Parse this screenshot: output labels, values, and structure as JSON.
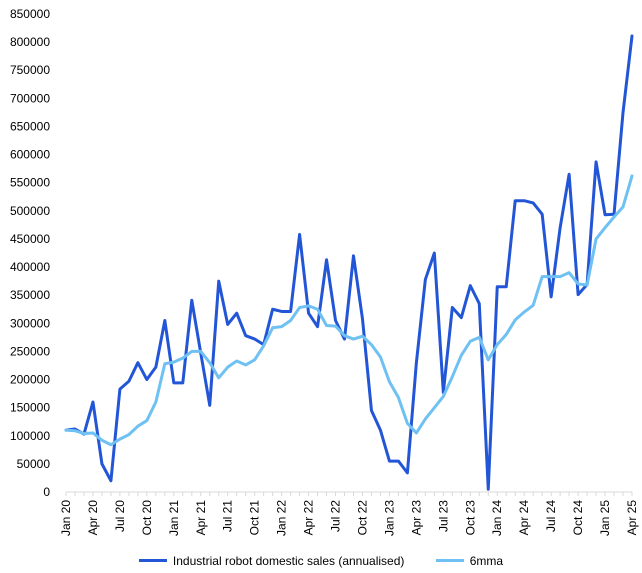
{
  "chart_data": {
    "type": "line",
    "title": "",
    "xlabel": "",
    "ylabel": "",
    "ylim": [
      0,
      850000
    ],
    "y_ticks": [
      0,
      50000,
      100000,
      150000,
      200000,
      250000,
      300000,
      350000,
      400000,
      450000,
      500000,
      550000,
      600000,
      650000,
      700000,
      750000,
      800000,
      850000
    ],
    "x": [
      "Jan 20",
      "Feb 20",
      "Mar 20",
      "Apr 20",
      "May 20",
      "Jun 20",
      "Jul 20",
      "Aug 20",
      "Sep 20",
      "Oct 20",
      "Nov 20",
      "Dec 20",
      "Jan 21",
      "Feb 21",
      "Mar 21",
      "Apr 21",
      "May 21",
      "Jun 21",
      "Jul 21",
      "Aug 21",
      "Sep 21",
      "Oct 21",
      "Nov 21",
      "Dec 21",
      "Jan 22",
      "Feb 22",
      "Mar 22",
      "Apr 22",
      "May 22",
      "Jun 22",
      "Jul 22",
      "Aug 22",
      "Sep 22",
      "Oct 22",
      "Nov 22",
      "Dec 22",
      "Jan 23",
      "Feb 23",
      "Mar 23",
      "Apr 23",
      "May 23",
      "Jun 23",
      "Jul 23",
      "Aug 23",
      "Sep 23",
      "Oct 23",
      "Nov 23",
      "Dec 23",
      "Jan 24",
      "Feb 24",
      "Mar 24",
      "Apr 24",
      "May 24",
      "Jun 24",
      "Jul 24",
      "Aug 24",
      "Sep 24",
      "Oct 24",
      "Nov 24",
      "Dec 24",
      "Jan 25",
      "Feb 25",
      "Mar 25",
      "Apr 25"
    ],
    "x_tick_labels": [
      "Jan 20",
      "Apr 20",
      "Jul 20",
      "Oct 20",
      "Jan 21",
      "Apr 21",
      "Jul 21",
      "Oct 21",
      "Jan 22",
      "Apr 22",
      "Jul 22",
      "Oct 22",
      "Jan 23",
      "Apr 23",
      "Jul 23",
      "Oct 23",
      "Jan 24",
      "Apr 24",
      "Jul 24",
      "Oct 24",
      "Jan 25",
      "Apr 25"
    ],
    "series": [
      {
        "name": "Industrial robot domestic sales (annualised)",
        "color": "#2356D6",
        "values": [
          110000,
          112000,
          103000,
          160000,
          50000,
          20000,
          183000,
          197000,
          230000,
          200000,
          222000,
          305000,
          194000,
          194000,
          341000,
          247000,
          154000,
          375000,
          298000,
          318000,
          278000,
          272000,
          262000,
          325000,
          321000,
          321000,
          458000,
          318000,
          294000,
          413000,
          305000,
          272000,
          420000,
          308000,
          145000,
          110000,
          55000,
          55000,
          34000,
          230000,
          378000,
          425000,
          177000,
          328000,
          310000,
          367000,
          335000,
          5000,
          365000,
          365000,
          518000,
          518000,
          514000,
          494000,
          347000,
          470000,
          565000,
          351000,
          369000,
          587000,
          493000,
          494000,
          675000,
          811000
        ],
        "legend_label": "Industrial robot domestic sales (annualised)"
      },
      {
        "name": "6mma",
        "color": "#6EC1F2",
        "values": [
          110000,
          109000,
          104000,
          105000,
          92000,
          84000,
          94000,
          102000,
          117000,
          127000,
          160000,
          228000,
          231000,
          238000,
          250000,
          250000,
          230000,
          203000,
          222000,
          233000,
          226000,
          235000,
          260000,
          292000,
          294000,
          305000,
          328000,
          331000,
          325000,
          296000,
          295000,
          278000,
          272000,
          277000,
          262000,
          240000,
          196000,
          168000,
          122000,
          105000,
          130000,
          150000,
          170000,
          205000,
          243000,
          268000,
          275000,
          235000,
          262000,
          280000,
          306000,
          320000,
          332000,
          383000,
          383000,
          383000,
          390000,
          370000,
          368000,
          450000,
          470000,
          489000,
          507000,
          562000
        ],
        "legend_label": "6mma"
      }
    ],
    "grid": false,
    "legend_position": "bottom"
  }
}
